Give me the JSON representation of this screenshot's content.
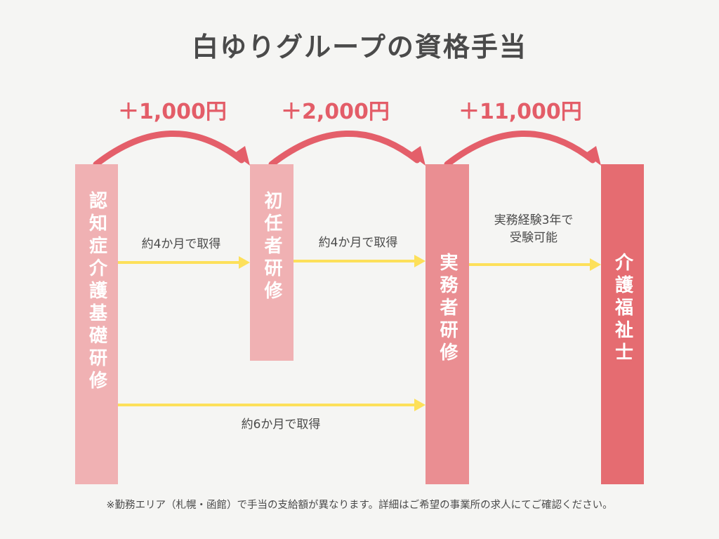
{
  "title": "白ゆりグループの資格手当",
  "allowances": {
    "a1": "＋1,000円",
    "a2": "＋2,000円",
    "a3": "＋11,000円"
  },
  "stages": {
    "s1": "認知症介護基礎研修",
    "s2": "初任者研修",
    "s3": "実務者研修",
    "s4": "介護福祉士"
  },
  "transitions": {
    "t1": "約4か月で取得",
    "t2": "約4か月で取得",
    "t3_line1": "実務経験3年で",
    "t3_line2": "受験可能",
    "t4": "約6か月で取得"
  },
  "footnote": "※勤務エリア（札幌・函館）で手当の支給額が異なります。詳細はご希望の事業所の求人にてご確認ください。",
  "colors": {
    "stage1": "#f0b1b3",
    "stage2": "#f0b1b3",
    "stage3": "#ea8e92",
    "stage4": "#e56c71",
    "arc": "#e45f6a",
    "arrow": "#fde05a",
    "background": "#f5f5f3"
  }
}
